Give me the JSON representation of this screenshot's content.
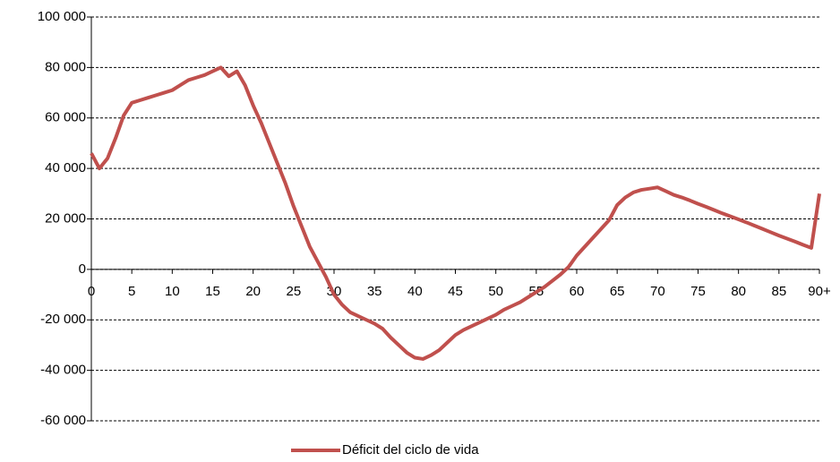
{
  "chart_data": {
    "type": "line",
    "x": [
      0,
      1,
      2,
      3,
      4,
      5,
      6,
      7,
      8,
      9,
      10,
      11,
      12,
      13,
      14,
      15,
      16,
      17,
      18,
      19,
      20,
      21,
      22,
      23,
      24,
      25,
      26,
      27,
      28,
      29,
      30,
      31,
      32,
      33,
      34,
      35,
      36,
      37,
      38,
      39,
      40,
      41,
      42,
      43,
      44,
      45,
      46,
      47,
      48,
      49,
      50,
      51,
      52,
      53,
      54,
      55,
      56,
      57,
      58,
      59,
      60,
      61,
      62,
      63,
      64,
      65,
      66,
      67,
      68,
      69,
      70,
      71,
      72,
      73,
      74,
      75,
      76,
      77,
      78,
      79,
      80,
      81,
      82,
      83,
      84,
      85,
      86,
      87,
      88,
      89,
      90
    ],
    "series": [
      {
        "name": "Déficit del ciclo de vida",
        "color": "#c0504d",
        "values": [
          46000,
          40000,
          44000,
          52000,
          61000,
          66000,
          67000,
          68000,
          69000,
          70000,
          71000,
          73000,
          75000,
          76000,
          77000,
          78500,
          80000,
          76500,
          78500,
          73000,
          65000,
          58000,
          50000,
          42000,
          34000,
          25000,
          17000,
          9000,
          3000,
          -3000,
          -10000,
          -14000,
          -17000,
          -18500,
          -20000,
          -21500,
          -23500,
          -27000,
          -30000,
          -33000,
          -35000,
          -35500,
          -34000,
          -32000,
          -29000,
          -26000,
          -24000,
          -22500,
          -21000,
          -19500,
          -18000,
          -16000,
          -14500,
          -13000,
          -11000,
          -9000,
          -7000,
          -4500,
          -2000,
          1000,
          5500,
          9000,
          12500,
          16000,
          19500,
          25500,
          28500,
          30500,
          31500,
          32000,
          32500,
          31000,
          29500,
          28500,
          27300,
          26000,
          24800,
          23500,
          22200,
          21000,
          19800,
          18600,
          17300,
          16000,
          14700,
          13400,
          12200,
          11000,
          9700,
          8500,
          30000
        ]
      }
    ],
    "xlim": [
      0,
      90
    ],
    "xticks": [
      0,
      5,
      10,
      15,
      20,
      25,
      30,
      35,
      40,
      45,
      50,
      55,
      60,
      65,
      70,
      75,
      80,
      85,
      {
        "value": 90,
        "label": "90+"
      }
    ],
    "ylim": [
      -60000,
      100000
    ],
    "yticks": [
      {
        "value": -60000,
        "label": "-60 000"
      },
      {
        "value": -40000,
        "label": "-40 000"
      },
      {
        "value": -20000,
        "label": "-20 000"
      },
      0,
      {
        "value": 20000,
        "label": "20 000"
      },
      {
        "value": 40000,
        "label": "40 000"
      },
      {
        "value": 60000,
        "label": "60 000"
      },
      {
        "value": 80000,
        "label": "80 000"
      },
      {
        "value": 100000,
        "label": "100 000"
      }
    ],
    "grid": true,
    "legend": "bottom"
  }
}
